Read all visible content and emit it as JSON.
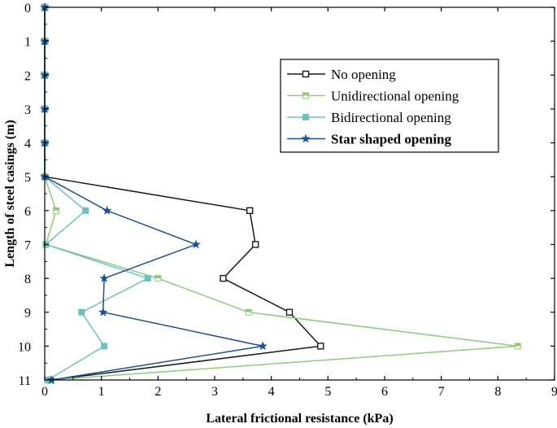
{
  "chart_data": {
    "type": "line",
    "orientation": "depth-profile",
    "xlabel": "Lateral frictional resistance (kPa)",
    "ylabel": "Length of steel casings (m)",
    "xlim": [
      0,
      9
    ],
    "ylim": [
      0,
      11
    ],
    "y_inverted": true,
    "x_ticks": [
      0,
      1,
      2,
      3,
      4,
      5,
      6,
      7,
      8,
      9
    ],
    "y_ticks": [
      0,
      1,
      2,
      3,
      4,
      5,
      6,
      7,
      8,
      9,
      10,
      11
    ],
    "grid": false,
    "legend_position": "top-right",
    "y": [
      0,
      1,
      2,
      3,
      4,
      5,
      6,
      7,
      8,
      9,
      10,
      11
    ],
    "series": [
      {
        "name": "No opening",
        "color": "#1a1a1a",
        "marker": "open-square",
        "x": [
          0,
          0,
          0,
          0,
          0,
          0,
          3.62,
          3.72,
          3.15,
          4.32,
          4.87,
          0.1
        ]
      },
      {
        "name": "Unidirectional opening",
        "color": "#8fc97a",
        "marker": "half-square",
        "x": [
          0,
          0,
          0,
          0,
          0,
          0,
          0.2,
          0.02,
          2.0,
          3.6,
          8.35,
          0.08
        ]
      },
      {
        "name": "Bidirectional opening",
        "color": "#6cc1c0",
        "marker": "filled-square",
        "x": [
          0,
          0,
          0,
          0,
          0,
          0,
          0.72,
          0.02,
          1.82,
          0.65,
          1.05,
          0.05
        ]
      },
      {
        "name": "Star shaped opening",
        "color": "#1f4e96",
        "marker": "star",
        "legend_bold": true,
        "x": [
          0,
          0,
          0,
          0,
          0,
          0,
          1.1,
          2.67,
          1.05,
          1.03,
          3.85,
          0.12
        ]
      }
    ]
  }
}
